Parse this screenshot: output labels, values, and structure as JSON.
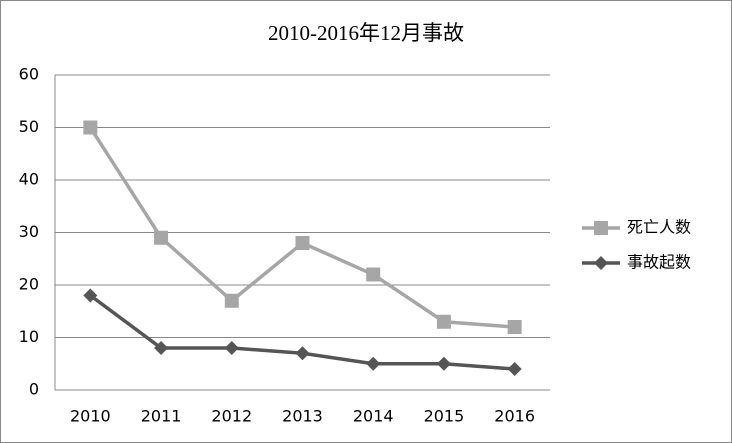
{
  "chart_data": {
    "type": "line",
    "title": "2010-2016年12月事故",
    "categories": [
      "2010",
      "2011",
      "2012",
      "2013",
      "2014",
      "2015",
      "2016"
    ],
    "series": [
      {
        "name": "死亡人数",
        "color": "#a6a6a6",
        "marker": "square",
        "values": [
          50,
          29,
          17,
          28,
          22,
          13,
          12
        ]
      },
      {
        "name": "事故起数",
        "color": "#555555",
        "marker": "diamond",
        "values": [
          18,
          8,
          8,
          7,
          5,
          5,
          4
        ]
      }
    ],
    "ylim": [
      0,
      60
    ],
    "yticks": [
      0,
      10,
      20,
      30,
      40,
      50,
      60
    ],
    "grid": true,
    "legend": "right"
  }
}
